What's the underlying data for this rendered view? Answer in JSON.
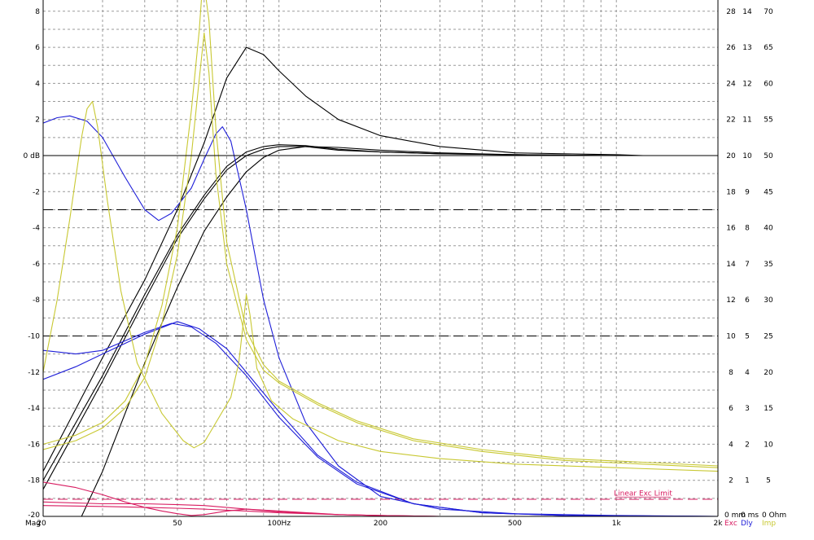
{
  "chart_data": {
    "type": "line",
    "title": "",
    "xlabel": "Mag",
    "x_scale": "log",
    "xlim": [
      20,
      2000
    ],
    "x_ticks": [
      {
        "value": 20,
        "label": "20"
      },
      {
        "value": 50,
        "label": "50"
      },
      {
        "value": 100,
        "label": "100Hz"
      },
      {
        "value": 200,
        "label": "200"
      },
      {
        "value": 500,
        "label": "500"
      },
      {
        "value": 1000,
        "label": "1k"
      },
      {
        "value": 2000,
        "label": "2k"
      }
    ],
    "ylabel": "dB",
    "ylim": [
      -20,
      8.8
    ],
    "y_ticks": [
      {
        "value": 8,
        "label": "8"
      },
      {
        "value": 6,
        "label": "6"
      },
      {
        "value": 4,
        "label": "4"
      },
      {
        "value": 2,
        "label": "2"
      },
      {
        "value": 0,
        "label": "0 dB"
      },
      {
        "value": -2,
        "label": "-2"
      },
      {
        "value": -4,
        "label": "-4"
      },
      {
        "value": -6,
        "label": "-6"
      },
      {
        "value": -8,
        "label": "-8"
      },
      {
        "value": -10,
        "label": "-10"
      },
      {
        "value": -12,
        "label": "-12"
      },
      {
        "value": -14,
        "label": "-14"
      },
      {
        "value": -16,
        "label": "-16"
      },
      {
        "value": -18,
        "label": "-18"
      },
      {
        "value": -20,
        "label": "-20"
      }
    ],
    "right_axes": [
      {
        "name": "Exc",
        "color": "#d81b60",
        "ticks": [
          "28",
          "26",
          "24",
          "22",
          "20",
          "18",
          "16",
          "14",
          "12",
          "10",
          "8",
          "6",
          "4",
          "2",
          "0 mm"
        ]
      },
      {
        "name": "Dly",
        "color": "#1e1ed8",
        "ticks": [
          "14",
          "13",
          "12",
          "11",
          "10",
          "9",
          "8",
          "7",
          "6",
          "5",
          "4",
          "3",
          "2",
          "1",
          "0 ms"
        ]
      },
      {
        "name": "Imp",
        "color": "#c8c832",
        "ticks": [
          "70",
          "65",
          "60",
          "55",
          "50",
          "45",
          "40",
          "35",
          "30",
          "25",
          "20",
          "15",
          "10",
          "5",
          "0 Ohm"
        ]
      }
    ],
    "grid": true,
    "reference_lines": [
      {
        "y": -3,
        "style": "dashed",
        "color": "#000000"
      },
      {
        "y": -10,
        "style": "dashed",
        "color": "#000000"
      },
      {
        "y": -19.05,
        "style": "dashed",
        "color": "#d81b60"
      }
    ],
    "annotations": [
      {
        "text": "Linear Exc Limit",
        "x": 1200,
        "y": -18.95,
        "color": "#d81b60"
      }
    ],
    "series": [
      {
        "color": "#000000",
        "points": [
          [
            20,
            -17.5
          ],
          [
            30,
            -11.2
          ],
          [
            40,
            -6.9
          ],
          [
            50,
            -3.0
          ],
          [
            60,
            0.7
          ],
          [
            70,
            4.3
          ],
          [
            80,
            6.0
          ],
          [
            90,
            5.6
          ],
          [
            100,
            4.7
          ],
          [
            120,
            3.3
          ],
          [
            150,
            2.0
          ],
          [
            200,
            1.1
          ],
          [
            300,
            0.5
          ],
          [
            500,
            0.15
          ],
          [
            1000,
            0.05
          ],
          [
            1200,
            0.0
          ]
        ]
      },
      {
        "color": "#000000",
        "points": [
          [
            20,
            -18.0
          ],
          [
            30,
            -12.2
          ],
          [
            40,
            -7.7
          ],
          [
            50,
            -4.4
          ],
          [
            60,
            -2.2
          ],
          [
            70,
            -0.6
          ],
          [
            80,
            0.2
          ],
          [
            90,
            0.5
          ],
          [
            100,
            0.6
          ],
          [
            120,
            0.55
          ],
          [
            150,
            0.35
          ],
          [
            200,
            0.2
          ],
          [
            300,
            0.1
          ],
          [
            500,
            0.05
          ],
          [
            1000,
            0.0
          ],
          [
            1200,
            0.0
          ]
        ]
      },
      {
        "color": "#000000",
        "points": [
          [
            20,
            -18.5
          ],
          [
            30,
            -12.5
          ],
          [
            40,
            -8.0
          ],
          [
            50,
            -4.6
          ],
          [
            60,
            -2.4
          ],
          [
            70,
            -0.8
          ],
          [
            80,
            0.0
          ],
          [
            90,
            0.35
          ],
          [
            100,
            0.5
          ],
          [
            120,
            0.5
          ],
          [
            150,
            0.3
          ],
          [
            200,
            0.2
          ],
          [
            300,
            0.1
          ],
          [
            500,
            0.05
          ],
          [
            1000,
            0.0
          ],
          [
            1200,
            0.0
          ]
        ]
      },
      {
        "color": "#000000",
        "points": [
          [
            26,
            -20
          ],
          [
            30,
            -17.5
          ],
          [
            40,
            -11.5
          ],
          [
            50,
            -7.3
          ],
          [
            60,
            -4.2
          ],
          [
            70,
            -2.3
          ],
          [
            80,
            -0.9
          ],
          [
            90,
            -0.1
          ],
          [
            100,
            0.3
          ],
          [
            120,
            0.5
          ],
          [
            150,
            0.45
          ],
          [
            200,
            0.3
          ],
          [
            300,
            0.15
          ],
          [
            500,
            0.05
          ],
          [
            1000,
            0.0
          ],
          [
            1200,
            0.0
          ]
        ]
      },
      {
        "color": "#1e1ed8",
        "points": [
          [
            20,
            1.8
          ],
          [
            22,
            2.1
          ],
          [
            24,
            2.2
          ],
          [
            27,
            1.9
          ],
          [
            30,
            1.0
          ],
          [
            35,
            -1.2
          ],
          [
            40,
            -3.0
          ],
          [
            44,
            -3.6
          ],
          [
            48,
            -3.2
          ],
          [
            55,
            -1.8
          ],
          [
            60,
            -0.2
          ],
          [
            65,
            1.2
          ],
          [
            68,
            1.6
          ],
          [
            72,
            0.8
          ],
          [
            80,
            -3.0
          ],
          [
            90,
            -8.0
          ],
          [
            100,
            -11.2
          ],
          [
            120,
            -14.8
          ],
          [
            150,
            -17.2
          ],
          [
            200,
            -18.9
          ],
          [
            300,
            -19.6
          ],
          [
            500,
            -19.85
          ],
          [
            1000,
            -19.95
          ],
          [
            2000,
            -20.0
          ]
        ]
      },
      {
        "color": "#1e1ed8",
        "points": [
          [
            20,
            -10.8
          ],
          [
            25,
            -11.0
          ],
          [
            30,
            -10.8
          ],
          [
            40,
            -9.8
          ],
          [
            48,
            -9.3
          ],
          [
            55,
            -9.5
          ],
          [
            65,
            -10.4
          ],
          [
            80,
            -12.2
          ],
          [
            100,
            -14.5
          ],
          [
            130,
            -16.7
          ],
          [
            170,
            -18.2
          ],
          [
            250,
            -19.3
          ],
          [
            400,
            -19.8
          ],
          [
            700,
            -19.95
          ],
          [
            2000,
            -20.0
          ]
        ]
      },
      {
        "color": "#1e1ed8",
        "points": [
          [
            20,
            -12.4
          ],
          [
            25,
            -11.7
          ],
          [
            30,
            -11.0
          ],
          [
            40,
            -9.9
          ],
          [
            50,
            -9.2
          ],
          [
            58,
            -9.6
          ],
          [
            70,
            -10.7
          ],
          [
            85,
            -12.6
          ],
          [
            100,
            -14.2
          ],
          [
            130,
            -16.6
          ],
          [
            170,
            -18.1
          ],
          [
            250,
            -19.3
          ],
          [
            400,
            -19.8
          ],
          [
            700,
            -19.95
          ],
          [
            2000,
            -20.0
          ]
        ]
      },
      {
        "color": "#c8c832",
        "points": [
          [
            20,
            -12.0
          ],
          [
            22,
            -8.0
          ],
          [
            24,
            -3.5
          ],
          [
            26,
            1.0
          ],
          [
            27,
            2.6
          ],
          [
            28,
            3.0
          ],
          [
            29,
            1.6
          ],
          [
            31,
            -2.5
          ],
          [
            34,
            -7.5
          ],
          [
            38,
            -11.5
          ],
          [
            45,
            -14.3
          ],
          [
            52,
            -15.8
          ],
          [
            56,
            -16.2
          ],
          [
            60,
            -15.9
          ],
          [
            66,
            -14.6
          ],
          [
            72,
            -13.4
          ],
          [
            76,
            -11.5
          ],
          [
            79,
            -8.7
          ],
          [
            80,
            -7.7
          ],
          [
            82,
            -8.8
          ],
          [
            86,
            -11.8
          ],
          [
            95,
            -13.6
          ],
          [
            110,
            -14.6
          ],
          [
            150,
            -15.8
          ],
          [
            200,
            -16.4
          ],
          [
            300,
            -16.8
          ],
          [
            500,
            -17.1
          ],
          [
            1000,
            -17.3
          ],
          [
            2000,
            -17.5
          ]
        ]
      },
      {
        "color": "#c8c832",
        "points": [
          [
            20,
            -16.3
          ],
          [
            25,
            -15.8
          ],
          [
            30,
            -15.1
          ],
          [
            35,
            -14.0
          ],
          [
            40,
            -12.3
          ],
          [
            45,
            -9.3
          ],
          [
            50,
            -5.5
          ],
          [
            55,
            0.0
          ],
          [
            58,
            4.2
          ],
          [
            60,
            6.8
          ],
          [
            62,
            4.6
          ],
          [
            65,
            -1.0
          ],
          [
            70,
            -6.0
          ],
          [
            80,
            -10.2
          ],
          [
            90,
            -11.9
          ],
          [
            100,
            -12.6
          ],
          [
            130,
            -13.8
          ],
          [
            170,
            -14.8
          ],
          [
            250,
            -15.8
          ],
          [
            400,
            -16.4
          ],
          [
            700,
            -16.9
          ],
          [
            1200,
            -17.1
          ],
          [
            2000,
            -17.3
          ]
        ]
      },
      {
        "color": "#c8c832",
        "points": [
          [
            20,
            -16.0
          ],
          [
            25,
            -15.5
          ],
          [
            30,
            -14.8
          ],
          [
            35,
            -13.6
          ],
          [
            40,
            -11.6
          ],
          [
            45,
            -8.3
          ],
          [
            50,
            -4.0
          ],
          [
            55,
            2.5
          ],
          [
            58,
            6.9
          ],
          [
            59,
            8.8
          ],
          [
            60,
            9.5
          ],
          [
            62,
            7.5
          ],
          [
            65,
            1.5
          ],
          [
            70,
            -4.8
          ],
          [
            80,
            -9.7
          ],
          [
            90,
            -11.6
          ],
          [
            100,
            -12.5
          ],
          [
            130,
            -13.7
          ],
          [
            170,
            -14.7
          ],
          [
            250,
            -15.7
          ],
          [
            400,
            -16.3
          ],
          [
            700,
            -16.8
          ],
          [
            1200,
            -17.0
          ],
          [
            2000,
            -17.2
          ]
        ]
      },
      {
        "color": "#d81b60",
        "points": [
          [
            20,
            -18.1
          ],
          [
            25,
            -18.4
          ],
          [
            30,
            -18.8
          ],
          [
            35,
            -19.2
          ],
          [
            40,
            -19.5
          ],
          [
            45,
            -19.7
          ],
          [
            50,
            -19.85
          ],
          [
            55,
            -19.95
          ],
          [
            60,
            -19.9
          ],
          [
            70,
            -19.7
          ],
          [
            80,
            -19.6
          ],
          [
            100,
            -19.75
          ],
          [
            150,
            -19.9
          ],
          [
            200,
            -19.95
          ],
          [
            300,
            -20.0
          ]
        ]
      },
      {
        "color": "#d81b60",
        "points": [
          [
            20,
            -19.2
          ],
          [
            30,
            -19.3
          ],
          [
            40,
            -19.3
          ],
          [
            50,
            -19.35
          ],
          [
            60,
            -19.4
          ],
          [
            80,
            -19.6
          ],
          [
            100,
            -19.7
          ],
          [
            150,
            -19.9
          ],
          [
            200,
            -19.95
          ],
          [
            300,
            -20.0
          ]
        ]
      },
      {
        "color": "#d81b60",
        "points": [
          [
            20,
            -19.4
          ],
          [
            30,
            -19.45
          ],
          [
            40,
            -19.5
          ],
          [
            50,
            -19.55
          ],
          [
            60,
            -19.6
          ],
          [
            80,
            -19.7
          ],
          [
            100,
            -19.8
          ],
          [
            150,
            -19.9
          ],
          [
            200,
            -19.95
          ],
          [
            300,
            -20.0
          ]
        ]
      }
    ]
  }
}
